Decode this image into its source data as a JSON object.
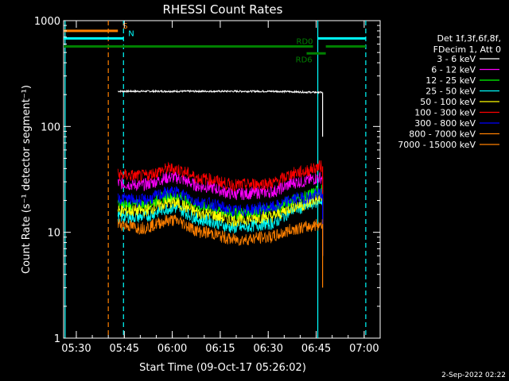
{
  "chart_data": {
    "type": "line",
    "title": "RHESSI Count Rates",
    "xlabel": "Start Time (09-Oct-17 05:26:02)",
    "ylabel": "Count Rate (s⁻¹ detector segment⁻¹)",
    "x_scale": "time",
    "y_scale": "log",
    "xlim": [
      "05:26:02",
      "07:05:00"
    ],
    "ylim": [
      1,
      1000
    ],
    "x_ticks": [
      "05:30",
      "05:45",
      "06:00",
      "06:15",
      "06:30",
      "06:45",
      "07:00"
    ],
    "y_ticks": [
      "1",
      "10",
      "100",
      "1000"
    ],
    "legend_header": [
      "Det 1f,3f,6f,8f,",
      "FDecim 1, Att 0"
    ],
    "legend_position": "right",
    "timestamp": "2-Sep-2022 02:22",
    "series": [
      {
        "name": "3 - 6 keV",
        "color": "#ffffff",
        "x": [
          "05:43",
          "06:00",
          "06:15",
          "06:30",
          "06:47"
        ],
        "y": [
          215,
          215,
          215,
          215,
          210
        ]
      },
      {
        "name": "6 - 12 keV",
        "color": "#ff00ff",
        "x": [
          "05:43",
          "05:50",
          "06:00",
          "06:10",
          "06:20",
          "06:30",
          "06:40",
          "06:47"
        ],
        "y": [
          29,
          28,
          33,
          27,
          23,
          24,
          30,
          33
        ]
      },
      {
        "name": "12 - 25 keV",
        "color": "#00ff00",
        "x": [
          "05:43",
          "05:50",
          "06:00",
          "06:10",
          "06:20",
          "06:30",
          "06:40",
          "06:47"
        ],
        "y": [
          18,
          18,
          22,
          17,
          15,
          16,
          21,
          25
        ]
      },
      {
        "name": "25 - 50 keV",
        "color": "#00ffff",
        "x": [
          "05:43",
          "05:50",
          "06:00",
          "06:10",
          "06:20",
          "06:30",
          "06:40",
          "06:47"
        ],
        "y": [
          14,
          14,
          17,
          13,
          11,
          12,
          17,
          20
        ]
      },
      {
        "name": "50 - 100 keV",
        "color": "#ffff00",
        "x": [
          "05:43",
          "05:50",
          "06:00",
          "06:10",
          "06:20",
          "06:30",
          "06:40",
          "06:47"
        ],
        "y": [
          16,
          16,
          19,
          15,
          13,
          14,
          18,
          21
        ]
      },
      {
        "name": "100 - 300 keV",
        "color": "#ff0000",
        "x": [
          "05:43",
          "05:50",
          "06:00",
          "06:10",
          "06:20",
          "06:30",
          "06:40",
          "06:47"
        ],
        "y": [
          35,
          34,
          40,
          32,
          28,
          29,
          37,
          42
        ]
      },
      {
        "name": "300 - 800 keV",
        "color": "#0000ff",
        "x": [
          "05:43",
          "05:50",
          "06:00",
          "06:10",
          "06:20",
          "06:30",
          "06:40",
          "06:47"
        ],
        "y": [
          21,
          20,
          24,
          19,
          16,
          17,
          21,
          23
        ]
      },
      {
        "name": "800 - 7000 keV",
        "color": "#ff8000",
        "x": [
          "05:43",
          "05:50",
          "06:00",
          "06:10",
          "06:20",
          "06:30",
          "06:40",
          "06:47"
        ],
        "y": [
          12,
          11,
          13,
          10,
          8.5,
          9,
          11,
          12
        ]
      },
      {
        "name": "7000 - 15000 keV",
        "color": "#ff8000",
        "x": [],
        "y": []
      }
    ],
    "annotations": [
      {
        "label": "S",
        "color": "#ff8000",
        "x_start": "05:26:02",
        "x_end": "05:43",
        "y": 800
      },
      {
        "label": "N",
        "color": "#00ffff",
        "x_start": "05:26:02",
        "x_end": "05:44:45",
        "y": 680
      },
      {
        "label": "",
        "color": "#00ffff",
        "x_start": "06:45:30",
        "x_end": "07:00:30",
        "y": 680
      },
      {
        "label": "RD0",
        "color": "#008000",
        "x_start": "05:26:02",
        "x_end": "06:44",
        "y": 570
      },
      {
        "label": "",
        "color": "#008000",
        "x_start": "06:48",
        "x_end": "07:00:30",
        "y": 570
      },
      {
        "label": "RD6",
        "color": "#008000",
        "x_start": "06:42",
        "x_end": "06:48",
        "y": 490
      }
    ],
    "vlines": [
      {
        "x": "05:26:30",
        "color": "#00ffff",
        "style": "solid"
      },
      {
        "x": "05:40",
        "color": "#ff8000",
        "style": "dashed"
      },
      {
        "x": "05:44:45",
        "color": "#00ffff",
        "style": "dashed"
      },
      {
        "x": "06:45:30",
        "color": "#00ffff",
        "style": "solid"
      },
      {
        "x": "07:00:30",
        "color": "#00ffff",
        "style": "dashed"
      }
    ]
  }
}
